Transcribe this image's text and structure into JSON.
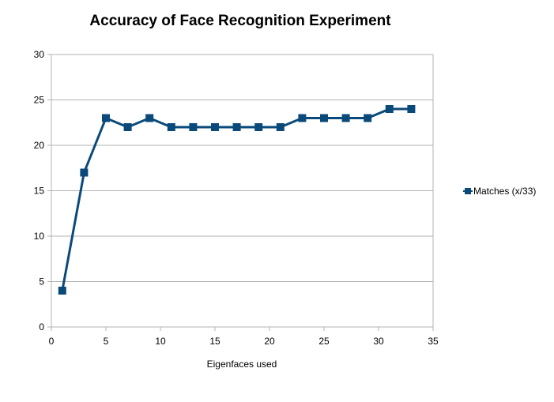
{
  "chart_data": {
    "type": "line",
    "title": "Accuracy of Face Recognition Experiment",
    "xlabel": "Eigenfaces used",
    "ylabel": "",
    "xlim": [
      0,
      35
    ],
    "ylim": [
      0,
      30
    ],
    "x_ticks": [
      0,
      5,
      10,
      15,
      20,
      25,
      30,
      35
    ],
    "y_ticks": [
      0,
      5,
      10,
      15,
      20,
      25,
      30
    ],
    "grid": true,
    "legend_position": "right",
    "series": [
      {
        "name": "Matches (x/33)",
        "color": "#0a4a7a",
        "marker": "square",
        "x": [
          1,
          3,
          5,
          7,
          9,
          11,
          13,
          15,
          17,
          19,
          21,
          23,
          25,
          27,
          29,
          31,
          33
        ],
        "y": [
          4,
          17,
          23,
          22,
          23,
          22,
          22,
          22,
          22,
          22,
          22,
          23,
          23,
          23,
          23,
          24,
          24
        ]
      }
    ]
  }
}
